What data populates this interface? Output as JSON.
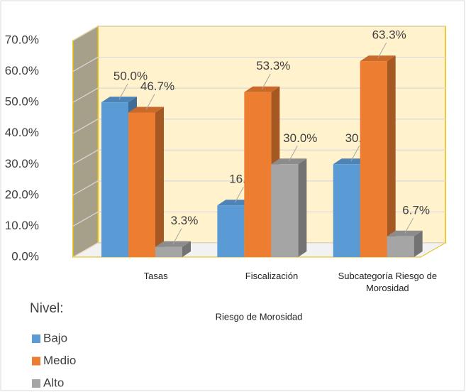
{
  "chart_data": {
    "type": "bar3d",
    "categories": [
      "Tasas",
      "Fiscalización",
      "Subcategoría Riesgo de Morosidad"
    ],
    "x_label": "Riesgo  de Morosidad",
    "legend_title": "Nivel:",
    "series": [
      {
        "name": "Bajo",
        "color": "#5b9bd5",
        "values": [
          50.0,
          16.7,
          30.0
        ],
        "value_labels": [
          "50.0%",
          "16.7%",
          "30.0%"
        ]
      },
      {
        "name": "Medio",
        "color": "#ed7d31",
        "values": [
          46.7,
          53.3,
          63.3
        ],
        "value_labels": [
          "46.7%",
          "53.3%",
          "63.3%"
        ]
      },
      {
        "name": "Alto",
        "color": "#a5a5a5",
        "values": [
          3.3,
          30.0,
          6.7
        ],
        "value_labels": [
          "3.3%",
          "30.0%",
          "6.7%"
        ]
      }
    ],
    "ylim": [
      0,
      70
    ],
    "yticks": [
      {
        "value": 0,
        "label": "0.0%"
      },
      {
        "value": 10,
        "label": "10.0%"
      },
      {
        "value": 20,
        "label": "20.0%"
      },
      {
        "value": 30,
        "label": "30.0%"
      },
      {
        "value": 40,
        "label": "40.0%"
      },
      {
        "value": 50,
        "label": "50.0%"
      },
      {
        "value": 60,
        "label": "60.0%"
      },
      {
        "value": 70,
        "label": "70.0%"
      }
    ],
    "grid": true
  }
}
